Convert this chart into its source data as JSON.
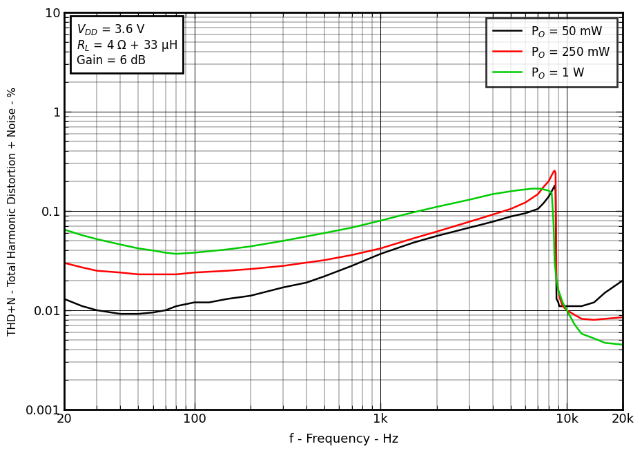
{
  "title": "",
  "xlabel": "f - Frequency - Hz",
  "ylabel": "THD+N - Total Harmonic Distortion + Noise - %",
  "xlim": [
    20,
    20000
  ],
  "ylim": [
    0.001,
    10
  ],
  "legend_labels": [
    "P$_O$ = 50 mW",
    "P$_O$ = 250 mW",
    "P$_O$ = 1 W"
  ],
  "line_colors": [
    "#000000",
    "#ff0000",
    "#00cc00"
  ],
  "line_width": 1.8,
  "bg_color": "#ffffff",
  "fig_bg_color": "#ffffff",
  "black_data_x": [
    20,
    25,
    30,
    40,
    50,
    60,
    70,
    80,
    100,
    120,
    150,
    200,
    300,
    400,
    500,
    700,
    1000,
    1500,
    2000,
    3000,
    4000,
    5000,
    6000,
    7000,
    7500,
    8000,
    8400,
    8600,
    8700,
    8800,
    9000,
    9100,
    9200,
    9500,
    10000,
    11000,
    12000,
    14000,
    16000,
    20000
  ],
  "black_data_y": [
    0.013,
    0.011,
    0.01,
    0.0092,
    0.0092,
    0.0095,
    0.01,
    0.011,
    0.012,
    0.012,
    0.013,
    0.014,
    0.017,
    0.019,
    0.022,
    0.028,
    0.037,
    0.048,
    0.056,
    0.068,
    0.078,
    0.088,
    0.095,
    0.105,
    0.12,
    0.14,
    0.165,
    0.18,
    0.16,
    0.013,
    0.012,
    0.011,
    0.011,
    0.011,
    0.011,
    0.011,
    0.011,
    0.012,
    0.015,
    0.02
  ],
  "red_data_x": [
    20,
    25,
    30,
    40,
    50,
    60,
    70,
    80,
    100,
    150,
    200,
    300,
    500,
    700,
    1000,
    1500,
    2000,
    3000,
    4000,
    5000,
    6000,
    7000,
    7500,
    8000,
    8300,
    8500,
    8600,
    8700,
    8800,
    9000,
    9200,
    9500,
    10000,
    11000,
    12000,
    14000,
    16000,
    20000
  ],
  "red_data_y": [
    0.03,
    0.027,
    0.025,
    0.024,
    0.023,
    0.023,
    0.023,
    0.023,
    0.024,
    0.025,
    0.026,
    0.028,
    0.032,
    0.036,
    0.042,
    0.053,
    0.062,
    0.078,
    0.092,
    0.105,
    0.122,
    0.148,
    0.175,
    0.2,
    0.23,
    0.25,
    0.255,
    0.24,
    0.02,
    0.016,
    0.013,
    0.011,
    0.01,
    0.009,
    0.0082,
    0.008,
    0.0082,
    0.0085
  ],
  "green_data_x": [
    20,
    25,
    30,
    40,
    50,
    60,
    70,
    80,
    100,
    150,
    200,
    300,
    500,
    700,
    1000,
    1500,
    2000,
    3000,
    4000,
    5000,
    5500,
    6000,
    6500,
    7000,
    7200,
    7500,
    7800,
    8000,
    8100,
    8300,
    8500,
    8600,
    8700,
    8800,
    9000,
    9500,
    10000,
    11000,
    12000,
    14000,
    16000,
    20000
  ],
  "green_data_y": [
    0.065,
    0.057,
    0.052,
    0.046,
    0.042,
    0.04,
    0.038,
    0.037,
    0.038,
    0.041,
    0.044,
    0.05,
    0.06,
    0.068,
    0.08,
    0.097,
    0.11,
    0.13,
    0.148,
    0.158,
    0.162,
    0.165,
    0.168,
    0.168,
    0.168,
    0.165,
    0.162,
    0.16,
    0.158,
    0.15,
    0.07,
    0.03,
    0.025,
    0.02,
    0.016,
    0.012,
    0.01,
    0.0072,
    0.0058,
    0.0052,
    0.0047,
    0.0045
  ]
}
